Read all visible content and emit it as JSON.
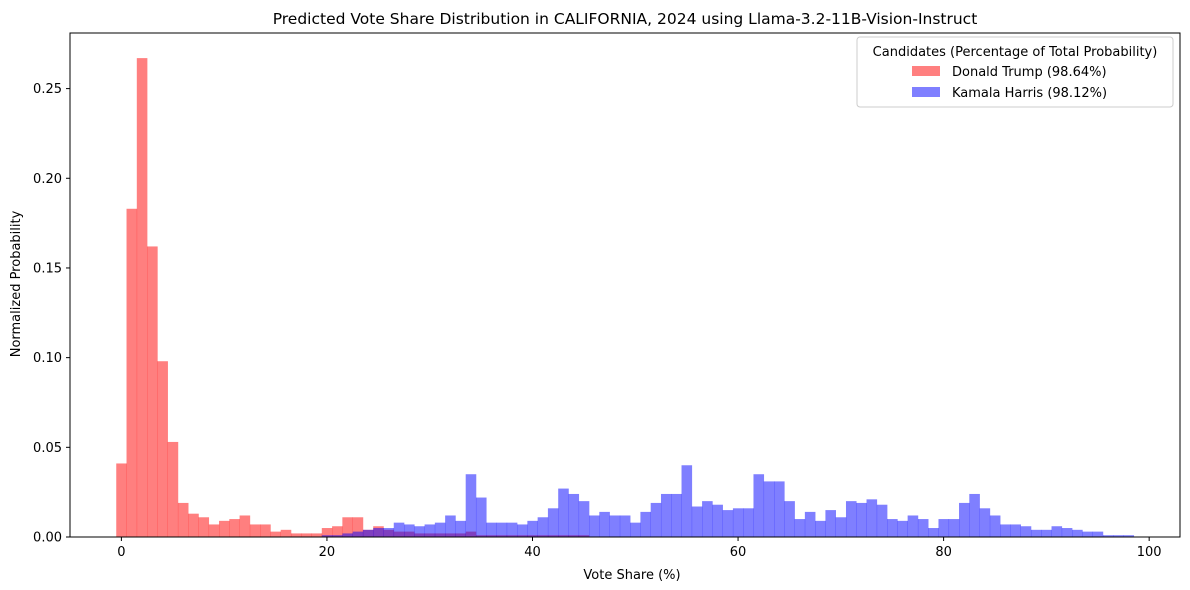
{
  "chart_data": {
    "type": "bar",
    "title": "Predicted Vote Share Distribution in CALIFORNIA, 2024 using Llama-3.2-11B-Vision-Instruct",
    "xlabel": "Vote Share (%)",
    "ylabel": "Normalized Probability",
    "xlim": [
      -5,
      103
    ],
    "ylim": [
      0,
      0.281
    ],
    "xticks": [
      0,
      20,
      40,
      60,
      80,
      100
    ],
    "xtick_labels": [
      "0",
      "20",
      "40",
      "60",
      "80",
      "100"
    ],
    "yticks": [
      0,
      0.05,
      0.1,
      0.15,
      0.2,
      0.25
    ],
    "ytick_labels": [
      "0.00",
      "0.05",
      "0.10",
      "0.15",
      "0.20",
      "0.25"
    ],
    "grid": false,
    "legend": {
      "title": "Candidates (Percentage of Total Probability)",
      "placement": "top-right"
    },
    "bin_width": 1,
    "series": [
      {
        "name": "Donald Trump (98.64%)",
        "color": "#ff0000",
        "opacity": 0.5,
        "bin_start": -0.5,
        "values": [
          0.041,
          0.183,
          0.267,
          0.162,
          0.098,
          0.053,
          0.019,
          0.013,
          0.011,
          0.007,
          0.009,
          0.01,
          0.012,
          0.007,
          0.007,
          0.003,
          0.004,
          0.002,
          0.002,
          0.002,
          0.005,
          0.006,
          0.011,
          0.011,
          0.004,
          0.006,
          0.004,
          0.003,
          0.003,
          0.002,
          0.002,
          0.002,
          0.002,
          0.002,
          0.003,
          0.001,
          0.001,
          0.001,
          0.001,
          0.001,
          0.001,
          0.001,
          0.001,
          0.001,
          0.001,
          0.001
        ]
      },
      {
        "name": "Kamala Harris (98.12%)",
        "color": "#0000ff",
        "opacity": 0.5,
        "bin_start": -0.5,
        "values": [
          0.0,
          0.0,
          0.0,
          0.0,
          0.0,
          0.0,
          0.0,
          0.0,
          0.0,
          0.0,
          0.0,
          0.0,
          0.0,
          0.0,
          0.0,
          0.0,
          0.0,
          0.0,
          0.0,
          0.0,
          0.001,
          0.001,
          0.002,
          0.003,
          0.004,
          0.005,
          0.005,
          0.008,
          0.007,
          0.006,
          0.007,
          0.008,
          0.012,
          0.009,
          0.035,
          0.022,
          0.008,
          0.008,
          0.008,
          0.007,
          0.009,
          0.011,
          0.016,
          0.027,
          0.024,
          0.02,
          0.012,
          0.014,
          0.012,
          0.012,
          0.008,
          0.014,
          0.019,
          0.024,
          0.024,
          0.04,
          0.017,
          0.02,
          0.018,
          0.015,
          0.016,
          0.016,
          0.035,
          0.031,
          0.031,
          0.02,
          0.01,
          0.014,
          0.009,
          0.015,
          0.011,
          0.02,
          0.019,
          0.021,
          0.018,
          0.01,
          0.009,
          0.012,
          0.01,
          0.005,
          0.01,
          0.01,
          0.019,
          0.024,
          0.016,
          0.012,
          0.007,
          0.007,
          0.006,
          0.004,
          0.004,
          0.006,
          0.005,
          0.004,
          0.003,
          0.003,
          0.001,
          0.001,
          0.001,
          0.0,
          0.0
        ]
      }
    ]
  }
}
